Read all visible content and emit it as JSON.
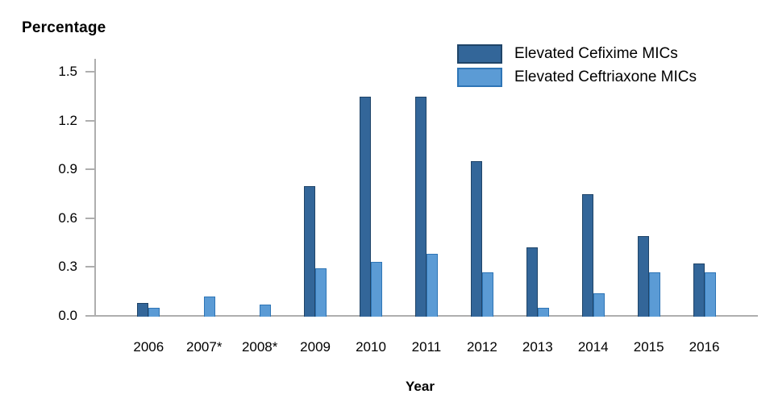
{
  "chart_data": {
    "type": "bar",
    "title": "Percentage",
    "ylabel": "Percentage",
    "xlabel": "Year",
    "categories": [
      "2006",
      "2007*",
      "2008*",
      "2009",
      "2010",
      "2011",
      "2012",
      "2013",
      "2014",
      "2015",
      "2016"
    ],
    "series": [
      {
        "name": "Elevated Cefixime MICs",
        "color": "#336699",
        "border_color": "#1f4468",
        "values": [
          0.08,
          null,
          null,
          0.8,
          1.35,
          1.35,
          0.95,
          0.42,
          0.75,
          0.49,
          0.32
        ]
      },
      {
        "name": "Elevated Ceftriaxone MICs",
        "color": "#5b9bd5",
        "border_color": "#2e75b6",
        "values": [
          0.05,
          0.12,
          0.07,
          0.29,
          0.33,
          0.38,
          0.27,
          0.05,
          0.14,
          0.27,
          0.27
        ]
      }
    ],
    "ylim": [
      0,
      1.5
    ],
    "yticks": [
      "0.0",
      "0.3",
      "0.6",
      "0.9",
      "1.2",
      "1.5"
    ],
    "grid": false,
    "legend_position": "top-right",
    "axis_color": "#aeaeae",
    "text_color": "#000000"
  }
}
